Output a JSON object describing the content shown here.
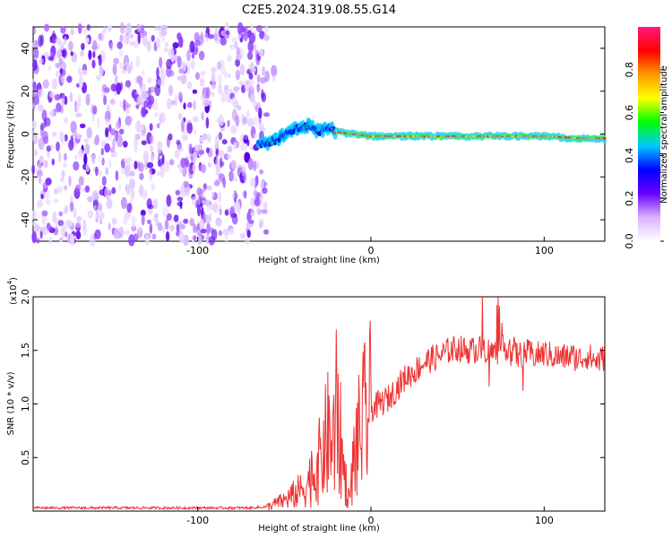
{
  "title": "C2E5.2024.319.08.55.G14",
  "chart_data": [
    {
      "type": "heatmap",
      "xlabel": "Height of straight line (km)",
      "ylabel": "Frequency (Hz)",
      "xlim": [
        -195,
        135
      ],
      "ylim": [
        -50,
        50
      ],
      "x_ticks": [
        -100,
        0,
        100
      ],
      "y_ticks": [
        -40,
        -20,
        0,
        20,
        40
      ],
      "noise_region_x": [
        -195,
        -60
      ],
      "signal_track": {
        "x": [
          -65,
          -60,
          -55,
          -50,
          -45,
          -40,
          -35,
          -30,
          -25,
          -20,
          0,
          20,
          40,
          60,
          80,
          100,
          120,
          135
        ],
        "freq_hz": [
          -5,
          -4,
          -3,
          0,
          2,
          3,
          4,
          1,
          3,
          1,
          -1,
          -1,
          -1,
          -1,
          -1,
          -1,
          -2,
          -2
        ]
      },
      "colorbar": {
        "label": "Normalized spectral amplitude",
        "range": [
          0,
          1
        ],
        "ticks": [
          "0.0",
          "0.2",
          "0.4",
          "0.6",
          "0.8"
        ],
        "colors": [
          "#ffffff",
          "#d9b3ff",
          "#6a00ff",
          "#0000ff",
          "#00c8ff",
          "#00ff00",
          "#ffff00",
          "#ff9900",
          "#ff0000",
          "#ff1a80"
        ]
      }
    },
    {
      "type": "line",
      "xlabel": "Height of straight line (km)",
      "ylabel": "SNR (10 * v/v)",
      "y_multiplier": "(x10",
      "y_multiplier_exp": "4",
      "y_multiplier_close": ")",
      "xlim": [
        -195,
        135
      ],
      "ylim": [
        0,
        2.0
      ],
      "x_ticks": [
        -100,
        0,
        100
      ],
      "y_ticks": [
        "0.5",
        "1.0",
        "1.5",
        "2.0"
      ],
      "series": [
        {
          "color": "#ee3333",
          "x": [
            -195,
            -100,
            -70,
            -60,
            -50,
            -40,
            -35,
            -30,
            -28,
            -25,
            -22,
            -20,
            -18,
            -15,
            -12,
            -10,
            -5,
            0,
            5,
            10,
            15,
            20,
            25,
            30,
            35,
            40,
            45,
            50,
            55,
            60,
            65,
            70,
            75,
            80,
            85,
            90,
            95,
            100,
            105,
            110,
            115,
            120,
            125,
            130,
            135
          ],
          "y": [
            0.03,
            0.03,
            0.03,
            0.04,
            0.1,
            0.2,
            0.3,
            0.45,
            0.55,
            0.7,
            0.6,
            0.9,
            0.7,
            0.3,
            0.1,
            0.5,
            0.8,
            0.95,
            1.0,
            1.05,
            1.15,
            1.25,
            1.3,
            1.38,
            1.42,
            1.45,
            1.5,
            1.52,
            1.5,
            1.5,
            1.52,
            1.48,
            1.5,
            1.55,
            1.45,
            1.48,
            1.45,
            1.47,
            1.45,
            1.43,
            1.45,
            1.42,
            1.45,
            1.4,
            1.43
          ]
        }
      ]
    }
  ]
}
